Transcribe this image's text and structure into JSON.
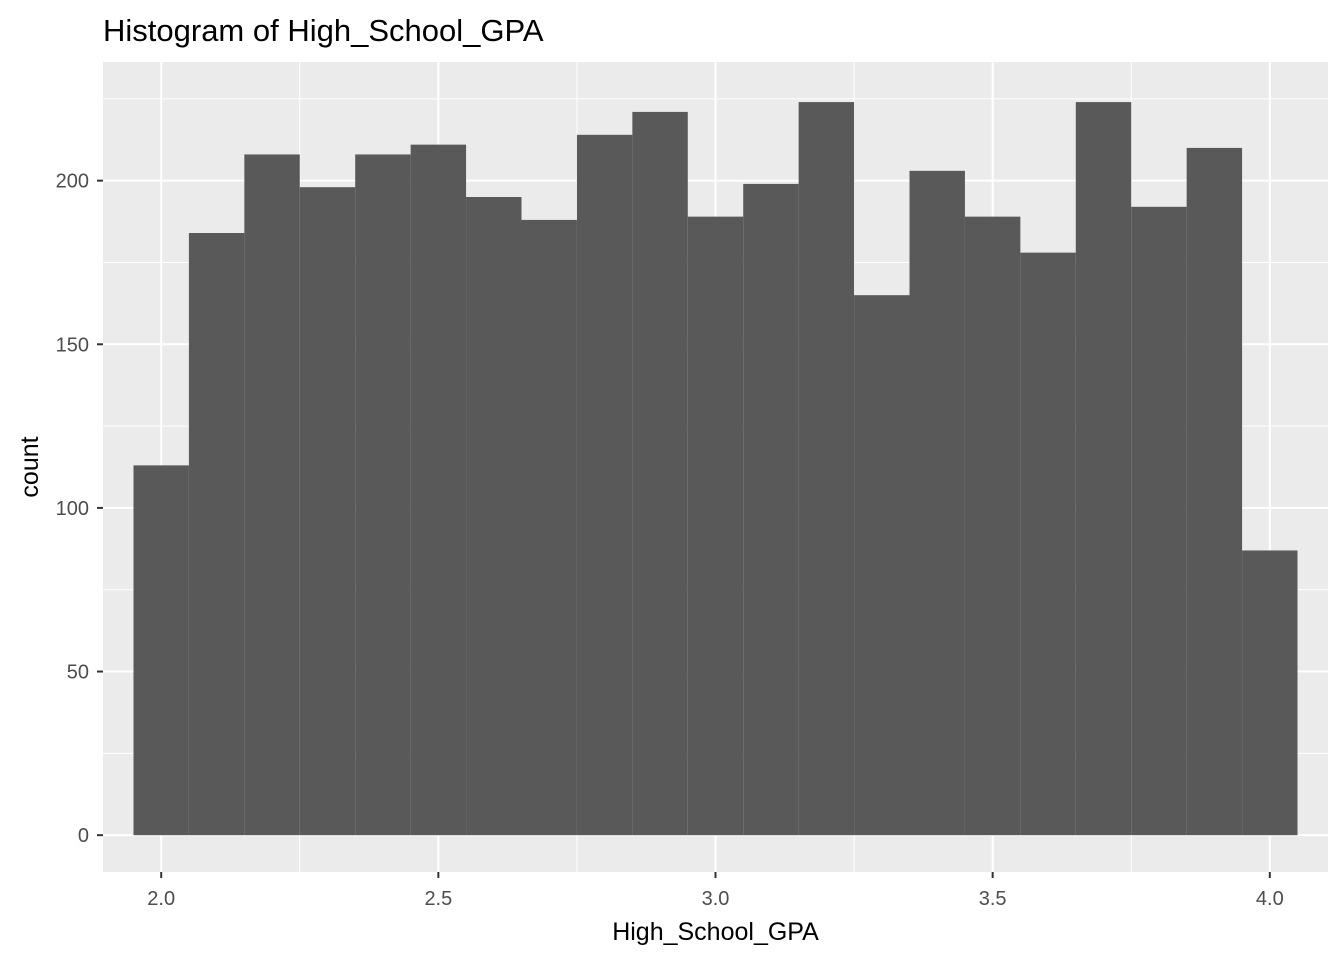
{
  "chart_data": {
    "type": "bar",
    "title": "Histogram of High_School_GPA",
    "xlabel": "High_School_GPA",
    "ylabel": "count",
    "xlim": [
      1.895,
      4.105
    ],
    "ylim": [
      -11.25,
      236.25
    ],
    "x_ticks": [
      2.0,
      2.5,
      3.0,
      3.5,
      4.0
    ],
    "x_tick_labels": [
      "2.0",
      "2.5",
      "3.0",
      "3.5",
      "4.0"
    ],
    "y_ticks": [
      0,
      50,
      100,
      150,
      200
    ],
    "y_tick_labels": [
      "0",
      "50",
      "100",
      "150",
      "200"
    ],
    "bin_width": 0.1,
    "bins": [
      {
        "x0": 1.95,
        "x1": 2.05,
        "count": 113
      },
      {
        "x0": 2.05,
        "x1": 2.15,
        "count": 184
      },
      {
        "x0": 2.15,
        "x1": 2.25,
        "count": 208
      },
      {
        "x0": 2.25,
        "x1": 2.35,
        "count": 198
      },
      {
        "x0": 2.35,
        "x1": 2.45,
        "count": 208
      },
      {
        "x0": 2.45,
        "x1": 2.55,
        "count": 211
      },
      {
        "x0": 2.55,
        "x1": 2.65,
        "count": 195
      },
      {
        "x0": 2.65,
        "x1": 2.75,
        "count": 188
      },
      {
        "x0": 2.75,
        "x1": 2.85,
        "count": 214
      },
      {
        "x0": 2.85,
        "x1": 2.95,
        "count": 221
      },
      {
        "x0": 2.95,
        "x1": 3.05,
        "count": 189
      },
      {
        "x0": 3.05,
        "x1": 3.15,
        "count": 199
      },
      {
        "x0": 3.15,
        "x1": 3.25,
        "count": 224
      },
      {
        "x0": 3.25,
        "x1": 3.35,
        "count": 165
      },
      {
        "x0": 3.35,
        "x1": 3.45,
        "count": 203
      },
      {
        "x0": 3.45,
        "x1": 3.55,
        "count": 189
      },
      {
        "x0": 3.55,
        "x1": 3.65,
        "count": 178
      },
      {
        "x0": 3.65,
        "x1": 3.75,
        "count": 224
      },
      {
        "x0": 3.75,
        "x1": 3.85,
        "count": 192
      },
      {
        "x0": 3.85,
        "x1": 3.95,
        "count": 210
      },
      {
        "x0": 3.95,
        "x1": 4.05,
        "count": 87
      }
    ],
    "grid": true,
    "colors": {
      "bar_fill": "#595959",
      "panel_background": "#ebebeb",
      "grid_line": "#ffffff",
      "tick_label": "#4d4d4d",
      "tick_mark": "#333333"
    }
  }
}
